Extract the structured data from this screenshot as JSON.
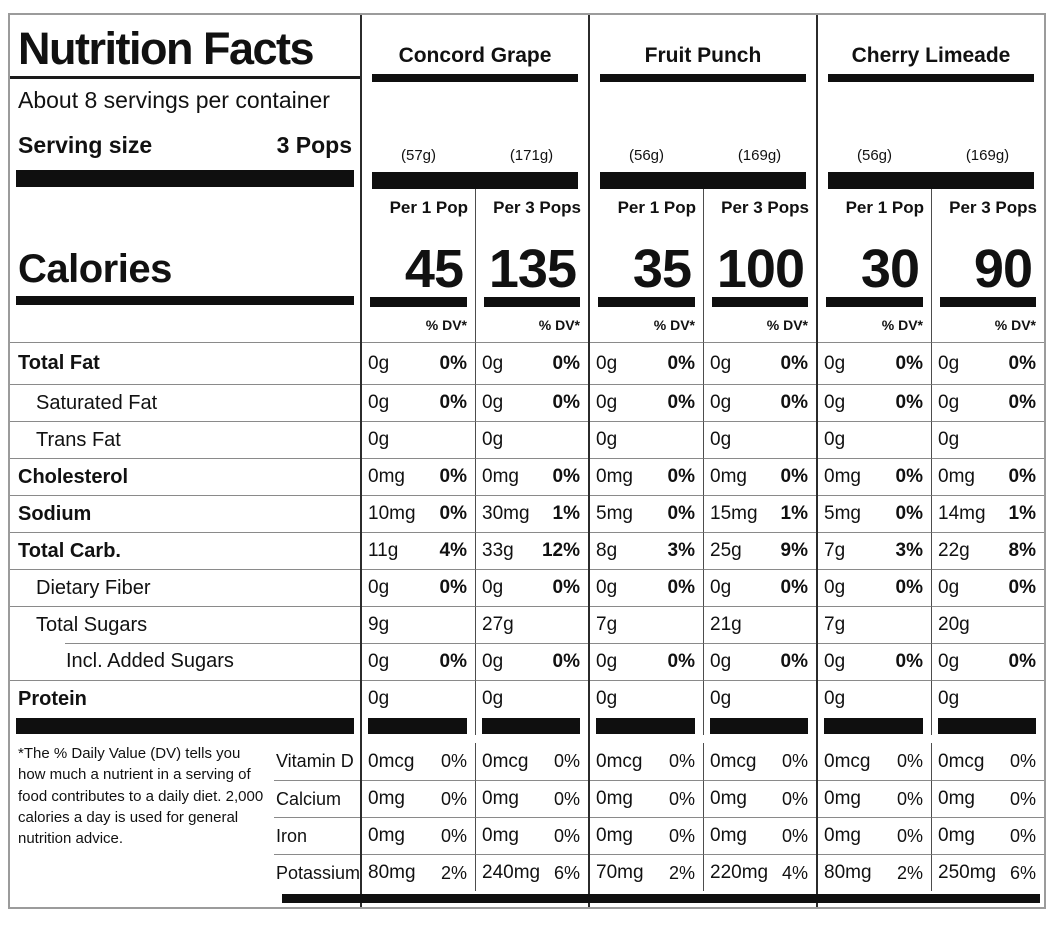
{
  "panel": {
    "title": "Nutrition Facts",
    "servings_line": "About 8 servings per container",
    "serving_size_label": "Serving size",
    "serving_size_value": "3 Pops",
    "calories_label": "Calories",
    "footnote": "*The % Daily Value (DV) tells you how much a nutrient in a serving of food contributes to a daily diet. 2,000 calories a day is used for general nutrition advice."
  },
  "labels": {
    "percent_dv": "% DV*"
  },
  "colors": {
    "bar": "#0f0f0f",
    "rule": "#8a8a8a",
    "border": "#9b9b9b"
  },
  "flavors": [
    {
      "name": "Concord Grape",
      "servings": [
        {
          "header": "Per 1 Pop",
          "weight": "(57g)",
          "calories": "45"
        },
        {
          "header": "Per 3 Pops",
          "weight": "(171g)",
          "calories": "135"
        }
      ]
    },
    {
      "name": "Fruit Punch",
      "servings": [
        {
          "header": "Per 1 Pop",
          "weight": "(56g)",
          "calories": "35"
        },
        {
          "header": "Per 3 Pops",
          "weight": "(169g)",
          "calories": "100"
        }
      ]
    },
    {
      "name": "Cherry Limeade",
      "servings": [
        {
          "header": "Per 1 Pop",
          "weight": "(56g)",
          "calories": "30"
        },
        {
          "header": "Per 3 Pops",
          "weight": "(169g)",
          "calories": "90"
        }
      ]
    }
  ],
  "nutrient_rows": [
    {
      "label": "Total Fat",
      "bold": true,
      "indent": 0,
      "cells": [
        {
          "amount": "0g",
          "dv": "0%"
        },
        {
          "amount": "0g",
          "dv": "0%"
        },
        {
          "amount": "0g",
          "dv": "0%"
        },
        {
          "amount": "0g",
          "dv": "0%"
        },
        {
          "amount": "0g",
          "dv": "0%"
        },
        {
          "amount": "0g",
          "dv": "0%"
        }
      ]
    },
    {
      "label": "Saturated Fat",
      "bold": false,
      "indent": 1,
      "cells": [
        {
          "amount": "0g",
          "dv": "0%"
        },
        {
          "amount": "0g",
          "dv": "0%"
        },
        {
          "amount": "0g",
          "dv": "0%"
        },
        {
          "amount": "0g",
          "dv": "0%"
        },
        {
          "amount": "0g",
          "dv": "0%"
        },
        {
          "amount": "0g",
          "dv": "0%"
        }
      ]
    },
    {
      "label": "Trans Fat",
      "bold": false,
      "indent": 1,
      "cells": [
        {
          "amount": "0g",
          "dv": ""
        },
        {
          "amount": "0g",
          "dv": ""
        },
        {
          "amount": "0g",
          "dv": ""
        },
        {
          "amount": "0g",
          "dv": ""
        },
        {
          "amount": "0g",
          "dv": ""
        },
        {
          "amount": "0g",
          "dv": ""
        }
      ]
    },
    {
      "label": "Cholesterol",
      "bold": true,
      "indent": 0,
      "cells": [
        {
          "amount": "0mg",
          "dv": "0%"
        },
        {
          "amount": "0mg",
          "dv": "0%"
        },
        {
          "amount": "0mg",
          "dv": "0%"
        },
        {
          "amount": "0mg",
          "dv": "0%"
        },
        {
          "amount": "0mg",
          "dv": "0%"
        },
        {
          "amount": "0mg",
          "dv": "0%"
        }
      ]
    },
    {
      "label": "Sodium",
      "bold": true,
      "indent": 0,
      "cells": [
        {
          "amount": "10mg",
          "dv": "0%"
        },
        {
          "amount": "30mg",
          "dv": "1%"
        },
        {
          "amount": "5mg",
          "dv": "0%"
        },
        {
          "amount": "15mg",
          "dv": "1%"
        },
        {
          "amount": "5mg",
          "dv": "0%"
        },
        {
          "amount": "14mg",
          "dv": "1%"
        }
      ]
    },
    {
      "label": "Total Carb.",
      "bold": true,
      "indent": 0,
      "cells": [
        {
          "amount": "11g",
          "dv": "4%"
        },
        {
          "amount": "33g",
          "dv": "12%"
        },
        {
          "amount": "8g",
          "dv": "3%"
        },
        {
          "amount": "25g",
          "dv": "9%"
        },
        {
          "amount": "7g",
          "dv": "3%"
        },
        {
          "amount": "22g",
          "dv": "8%"
        }
      ]
    },
    {
      "label": "Dietary Fiber",
      "bold": false,
      "indent": 1,
      "cells": [
        {
          "amount": "0g",
          "dv": "0%"
        },
        {
          "amount": "0g",
          "dv": "0%"
        },
        {
          "amount": "0g",
          "dv": "0%"
        },
        {
          "amount": "0g",
          "dv": "0%"
        },
        {
          "amount": "0g",
          "dv": "0%"
        },
        {
          "amount": "0g",
          "dv": "0%"
        }
      ]
    },
    {
      "label": "Total Sugars",
      "bold": false,
      "indent": 1,
      "cells": [
        {
          "amount": "9g",
          "dv": ""
        },
        {
          "amount": "27g",
          "dv": ""
        },
        {
          "amount": "7g",
          "dv": ""
        },
        {
          "amount": "21g",
          "dv": ""
        },
        {
          "amount": "7g",
          "dv": ""
        },
        {
          "amount": "20g",
          "dv": ""
        }
      ]
    },
    {
      "label": "Incl. Added Sugars",
      "bold": false,
      "indent": 2,
      "cells": [
        {
          "amount": "0g",
          "dv": "0%"
        },
        {
          "amount": "0g",
          "dv": "0%"
        },
        {
          "amount": "0g",
          "dv": "0%"
        },
        {
          "amount": "0g",
          "dv": "0%"
        },
        {
          "amount": "0g",
          "dv": "0%"
        },
        {
          "amount": "0g",
          "dv": "0%"
        }
      ]
    },
    {
      "label": "Protein",
      "bold": true,
      "indent": 0,
      "cells": [
        {
          "amount": "0g",
          "dv": ""
        },
        {
          "amount": "0g",
          "dv": ""
        },
        {
          "amount": "0g",
          "dv": ""
        },
        {
          "amount": "0g",
          "dv": ""
        },
        {
          "amount": "0g",
          "dv": ""
        },
        {
          "amount": "0g",
          "dv": ""
        }
      ]
    }
  ],
  "vitamin_rows": [
    {
      "label": "Vitamin D",
      "cells": [
        {
          "amount": "0mcg",
          "dv": "0%"
        },
        {
          "amount": "0mcg",
          "dv": "0%"
        },
        {
          "amount": "0mcg",
          "dv": "0%"
        },
        {
          "amount": "0mcg",
          "dv": "0%"
        },
        {
          "amount": "0mcg",
          "dv": "0%"
        },
        {
          "amount": "0mcg",
          "dv": "0%"
        }
      ]
    },
    {
      "label": "Calcium",
      "cells": [
        {
          "amount": "0mg",
          "dv": "0%"
        },
        {
          "amount": "0mg",
          "dv": "0%"
        },
        {
          "amount": "0mg",
          "dv": "0%"
        },
        {
          "amount": "0mg",
          "dv": "0%"
        },
        {
          "amount": "0mg",
          "dv": "0%"
        },
        {
          "amount": "0mg",
          "dv": "0%"
        }
      ]
    },
    {
      "label": "Iron",
      "cells": [
        {
          "amount": "0mg",
          "dv": "0%"
        },
        {
          "amount": "0mg",
          "dv": "0%"
        },
        {
          "amount": "0mg",
          "dv": "0%"
        },
        {
          "amount": "0mg",
          "dv": "0%"
        },
        {
          "amount": "0mg",
          "dv": "0%"
        },
        {
          "amount": "0mg",
          "dv": "0%"
        }
      ]
    },
    {
      "label": "Potassium",
      "cells": [
        {
          "amount": "80mg",
          "dv": "2%"
        },
        {
          "amount": "240mg",
          "dv": "6%"
        },
        {
          "amount": "70mg",
          "dv": "2%"
        },
        {
          "amount": "220mg",
          "dv": "4%"
        },
        {
          "amount": "80mg",
          "dv": "2%"
        },
        {
          "amount": "250mg",
          "dv": "6%"
        }
      ]
    }
  ]
}
